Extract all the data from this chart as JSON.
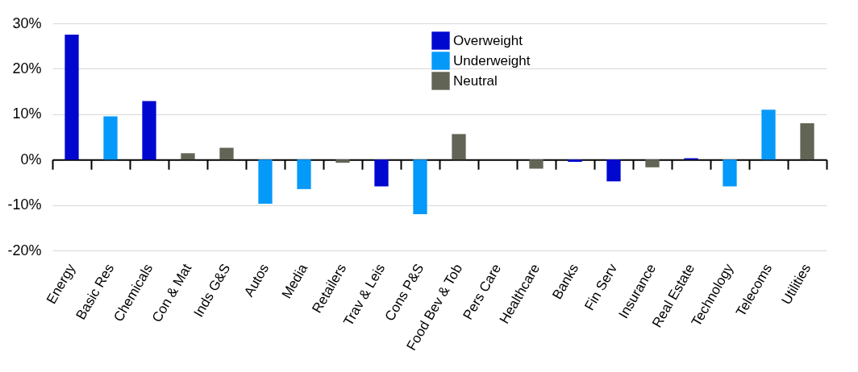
{
  "chart_data": {
    "type": "bar",
    "categories": [
      "Energy",
      "Basic Res",
      "Chemicals",
      "Con & Mat",
      "Inds G&S",
      "Autos",
      "Media",
      "Retailers",
      "Trav & Leis",
      "Cons P&S",
      "Food Bev & Tob",
      "Pers Care",
      "Healthcare",
      "Banks",
      "Fin Serv",
      "Insurance",
      "Real Estate",
      "Technology",
      "Telecoms",
      "Utilities"
    ],
    "series": [
      {
        "name": "Overweight",
        "color": "#0008d0",
        "values": [
          27.5,
          null,
          12.9,
          null,
          null,
          null,
          null,
          null,
          -5.9,
          null,
          null,
          null,
          null,
          -0.5,
          -4.8,
          null,
          0.3,
          null,
          null,
          null
        ]
      },
      {
        "name": "Underweight",
        "color": "#0599fa",
        "values": [
          null,
          9.5,
          null,
          null,
          null,
          -9.7,
          -6.5,
          null,
          null,
          -12,
          null,
          null,
          null,
          null,
          null,
          null,
          null,
          -5.9,
          11,
          null
        ]
      },
      {
        "name": "Neutral",
        "color": "#626456",
        "values": [
          null,
          null,
          null,
          1.4,
          2.6,
          null,
          null,
          -0.7,
          null,
          null,
          5.6,
          null,
          -2,
          null,
          null,
          -1.7,
          null,
          null,
          null,
          8
        ]
      }
    ],
    "ylim": [
      -20,
      30
    ],
    "yticks": [
      {
        "value": -20,
        "label": "-20%"
      },
      {
        "value": -10,
        "label": "-10%"
      },
      {
        "value": 0,
        "label": "0%"
      },
      {
        "value": 10,
        "label": "10%"
      },
      {
        "value": 20,
        "label": "20%"
      },
      {
        "value": 30,
        "label": "30%"
      }
    ],
    "grid": "y",
    "legend": "top"
  }
}
